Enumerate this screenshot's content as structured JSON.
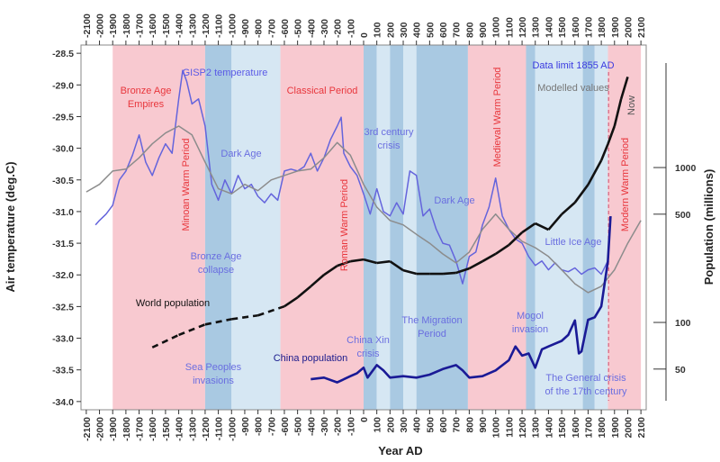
{
  "chart_data": {
    "type": "line",
    "x_label": "Year AD",
    "y_label": "Air temperature (deg.C)",
    "y2_label": "Population (millions)",
    "xlim": [
      -2140,
      2140
    ],
    "ylim": [
      -34.13,
      -28.37
    ],
    "y2lim": [
      27.3,
      6180
    ],
    "y2_log": true,
    "xticks": [
      -2100,
      -2000,
      -1900,
      -1800,
      -1700,
      -1600,
      -1500,
      -1400,
      -1300,
      -1200,
      -1100,
      -1000,
      -900,
      -800,
      -700,
      -600,
      -500,
      -400,
      -300,
      -200,
      -100,
      0,
      100,
      200,
      300,
      400,
      500,
      600,
      700,
      800,
      900,
      1000,
      1100,
      1200,
      1300,
      1400,
      1500,
      1600,
      1700,
      1800,
      1900,
      2000,
      2100
    ],
    "yticks": [
      -28.5,
      {
        "value": -29,
        "label": "-29.0"
      },
      -29.5,
      {
        "value": -30,
        "label": "-30.0"
      },
      -30.5,
      {
        "value": -31,
        "label": "-31.0"
      },
      -31.5,
      {
        "value": -32,
        "label": "-32.0"
      },
      -32.5,
      {
        "value": -33,
        "label": "-33.0"
      },
      -33.5,
      {
        "value": -34,
        "label": "-34.0"
      }
    ],
    "y2ticks": [
      50,
      100,
      500,
      1000
    ],
    "periods": [
      {
        "start": -1900,
        "end": -1200,
        "color": "#f8c9d0"
      },
      {
        "start": -1200,
        "end": -1000,
        "color": "#a9c9e2"
      },
      {
        "start": -1000,
        "end": -630,
        "color": "#d6e7f3"
      },
      {
        "start": -630,
        "end": 0,
        "color": "#f8c9d0"
      },
      {
        "start": 0,
        "end": 100,
        "color": "#a9c9e2"
      },
      {
        "start": 100,
        "end": 200,
        "color": "#d6e7f3"
      },
      {
        "start": 200,
        "end": 300,
        "color": "#a9c9e2"
      },
      {
        "start": 300,
        "end": 400,
        "color": "#d6e7f3"
      },
      {
        "start": 400,
        "end": 790,
        "color": "#a9c9e2"
      },
      {
        "start": 790,
        "end": 1230,
        "color": "#f8c9d0"
      },
      {
        "start": 1230,
        "end": 1300,
        "color": "#a9c9e2"
      },
      {
        "start": 1300,
        "end": 1660,
        "color": "#d6e7f3"
      },
      {
        "start": 1660,
        "end": 1750,
        "color": "#a9c9e2"
      },
      {
        "start": 1750,
        "end": 1850,
        "color": "#d6e7f3"
      },
      {
        "start": 1850,
        "end": 2100,
        "color": "#f8c9d0"
      }
    ],
    "reference_lines": [
      {
        "x": 1855,
        "color": "#d9607a"
      }
    ],
    "series": [
      {
        "name": "GISP2 temperature",
        "color": "#6464dc",
        "x": [
          -2030,
          -2000,
          -1950,
          -1900,
          -1850,
          -1800,
          -1750,
          -1700,
          -1650,
          -1600,
          -1550,
          -1500,
          -1450,
          -1400,
          -1370,
          -1340,
          -1300,
          -1250,
          -1200,
          -1150,
          -1100,
          -1050,
          -1000,
          -950,
          -900,
          -850,
          -800,
          -750,
          -700,
          -650,
          -600,
          -550,
          -500,
          -450,
          -400,
          -350,
          -300,
          -250,
          -200,
          -170,
          -150,
          -100,
          -50,
          0,
          50,
          100,
          150,
          200,
          250,
          300,
          350,
          400,
          450,
          500,
          550,
          600,
          650,
          700,
          750,
          800,
          850,
          900,
          950,
          1000,
          1050,
          1100,
          1150,
          1200,
          1250,
          1300,
          1350,
          1400,
          1450,
          1500,
          1550,
          1600,
          1650,
          1700,
          1750,
          1800,
          1850
        ],
        "values": [
          -31.21,
          -31.14,
          -31.04,
          -30.9,
          -30.5,
          -30.36,
          -30.11,
          -29.79,
          -30.22,
          -30.43,
          -30.15,
          -29.93,
          -30.08,
          -29.22,
          -28.77,
          -28.94,
          -29.3,
          -29.22,
          -29.65,
          -30.57,
          -30.82,
          -30.5,
          -30.72,
          -30.43,
          -30.64,
          -30.57,
          -30.76,
          -30.86,
          -30.72,
          -30.82,
          -30.36,
          -30.33,
          -30.36,
          -30.29,
          -30.08,
          -30.36,
          -30.15,
          -29.86,
          -29.65,
          -29.51,
          -30.08,
          -30.29,
          -30.43,
          -30.72,
          -31.04,
          -30.64,
          -31.0,
          -31.07,
          -30.86,
          -31.04,
          -30.36,
          -30.43,
          -31.07,
          -30.96,
          -31.28,
          -31.5,
          -31.53,
          -31.78,
          -32.14,
          -31.71,
          -31.64,
          -31.21,
          -30.93,
          -30.47,
          -31.07,
          -31.28,
          -31.43,
          -31.5,
          -31.71,
          -31.85,
          -31.78,
          -31.92,
          -31.81,
          -31.92,
          -31.95,
          -31.89,
          -31.99,
          -31.92,
          -31.89,
          -31.99,
          -31.78
        ]
      },
      {
        "name": "Modelled values",
        "color": "#8c8c8c",
        "x": [
          -2100,
          -2000,
          -1900,
          -1800,
          -1700,
          -1600,
          -1500,
          -1400,
          -1300,
          -1200,
          -1100,
          -1000,
          -900,
          -800,
          -700,
          -600,
          -500,
          -400,
          -300,
          -200,
          -100,
          0,
          100,
          200,
          300,
          400,
          500,
          600,
          700,
          800,
          900,
          1000,
          1100,
          1200,
          1300,
          1400,
          1500,
          1600,
          1700,
          1800,
          1900,
          2000,
          2100
        ],
        "values": [
          -30.69,
          -30.57,
          -30.36,
          -30.33,
          -30.15,
          -29.93,
          -29.76,
          -29.65,
          -29.79,
          -30.22,
          -30.64,
          -30.72,
          -30.57,
          -30.67,
          -30.5,
          -30.43,
          -30.36,
          -30.33,
          -30.15,
          -29.91,
          -30.11,
          -30.57,
          -30.93,
          -31.14,
          -31.21,
          -31.36,
          -31.5,
          -31.67,
          -31.81,
          -31.64,
          -31.28,
          -31.04,
          -31.28,
          -31.47,
          -31.57,
          -31.71,
          -31.92,
          -32.14,
          -32.28,
          -32.18,
          -31.92,
          -31.5,
          -31.14
        ]
      },
      {
        "name": "World population",
        "color": "#111111",
        "axis": "y2",
        "dashed_before": -600,
        "x": [
          -1600,
          -1400,
          -1200,
          -1000,
          -800,
          -600,
          -500,
          -400,
          -300,
          -200,
          -100,
          0,
          100,
          200,
          300,
          400,
          500,
          600,
          700,
          800,
          900,
          1000,
          1100,
          1200,
          1300,
          1400,
          1500,
          1600,
          1700,
          1800,
          1850,
          1900,
          1950,
          2000
        ],
        "values": [
          69,
          83,
          97,
          105,
          111,
          127,
          145,
          171,
          203,
          232,
          248,
          255,
          242,
          248,
          217,
          206,
          206,
          206,
          209,
          223,
          248,
          277,
          316,
          381,
          436,
          397,
          499,
          594,
          775,
          1112,
          1416,
          1852,
          2770,
          3850
        ]
      },
      {
        "name": "China population",
        "color": "#1a1a96",
        "axis": "y2",
        "x": [
          -400,
          -300,
          -200,
          -100,
          -50,
          0,
          30,
          100,
          150,
          200,
          300,
          400,
          500,
          600,
          700,
          750,
          800,
          900,
          1000,
          1100,
          1150,
          1200,
          1250,
          1300,
          1350,
          1400,
          1500,
          1550,
          1600,
          1630,
          1650,
          1700,
          1750,
          1800,
          1850,
          1870
        ],
        "values": [
          43,
          44,
          41,
          45,
          47,
          51,
          44,
          53,
          49,
          44,
          45,
          44,
          46,
          50,
          53,
          49,
          44,
          45,
          49,
          57,
          70,
          61,
          63,
          51,
          67,
          70,
          76,
          83,
          103,
          63,
          65,
          104,
          108,
          127,
          248,
          485
        ]
      }
    ],
    "annotations": [
      {
        "text": [
          "Bronze Age",
          "Empires"
        ],
        "color": "#e8363c"
      },
      {
        "text": [
          "GISP2 temperature"
        ],
        "color": "#5a5ae6"
      },
      {
        "text": [
          "Classical Period"
        ],
        "color": "#e8363c"
      },
      {
        "text": [
          "Minoan Warm Period"
        ],
        "color": "#e8363c"
      },
      {
        "text": [
          "Dark Age"
        ],
        "color": "#6a6ee0"
      },
      {
        "text": [
          "3rd century",
          "crisis"
        ],
        "color": "#6a6ee0"
      },
      {
        "text": [
          "Roman Warm Period"
        ],
        "color": "#e8363c"
      },
      {
        "text": [
          "Dark Age"
        ],
        "color": "#6a6ee0"
      },
      {
        "text": [
          "Medieval Warm Period"
        ],
        "color": "#e8363c"
      },
      {
        "text": [
          "Data limit 1855 AD"
        ],
        "color": "#3a3ae0"
      },
      {
        "text": [
          "Modelled values"
        ],
        "color": "#777777"
      },
      {
        "text": [
          "Now"
        ],
        "color": "#555555"
      },
      {
        "text": [
          "Modern Warm Period"
        ],
        "color": "#e8363c"
      },
      {
        "text": [
          "Little Ice Age"
        ],
        "color": "#6a6ee0"
      },
      {
        "text": [
          "Bronze Age",
          "collapse"
        ],
        "color": "#6a6ee0"
      },
      {
        "text": [
          "World population"
        ],
        "color": "#111111"
      },
      {
        "text": [
          "Mogol",
          "invasion"
        ],
        "color": "#6a6ee0"
      },
      {
        "text": [
          "China Xin",
          "crisis"
        ],
        "color": "#6a6ee0"
      },
      {
        "text": [
          "The Migration",
          "Period"
        ],
        "color": "#6a6ee0"
      },
      {
        "text": [
          "China population"
        ],
        "color": "#1a1a8c"
      },
      {
        "text": [
          "Sea Peoples",
          "invasions"
        ],
        "color": "#6a6ee0"
      },
      {
        "text": [
          "The General crisis",
          "of the 17th century"
        ],
        "color": "#6a6ee0"
      }
    ]
  }
}
